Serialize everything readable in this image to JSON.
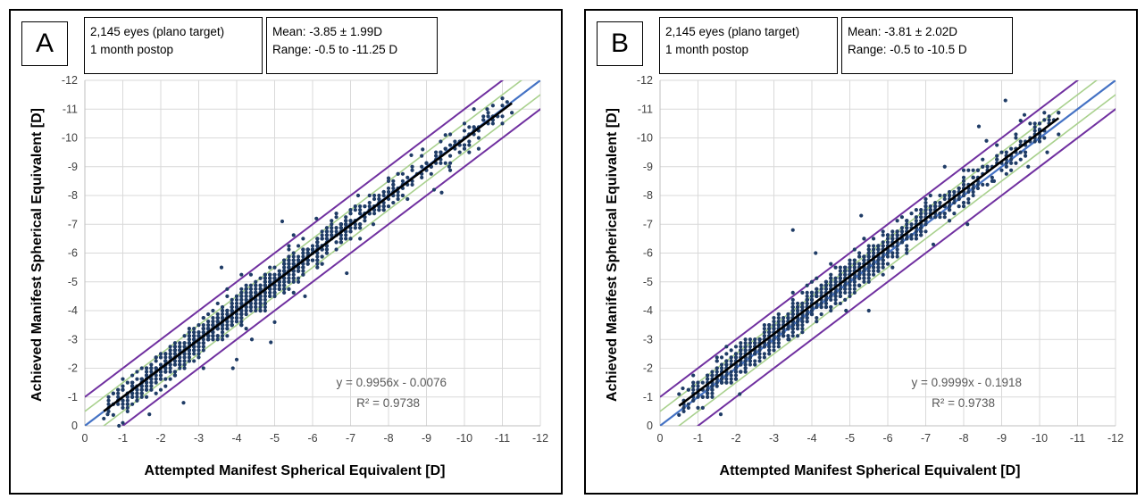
{
  "chart_data": [
    {
      "type": "scatter",
      "panel_label": "A",
      "info": {
        "line1": "2,145 eyes (plano target)",
        "line2": "1 month postop",
        "line3": "Mean: -3.85 ± 1.99D",
        "line4": "Range: -0.5 to -11.25 D"
      },
      "xlabel": "Attempted Manifest Spherical Equivalent [D]",
      "ylabel": "Achieved Manifest Spherical Equivalent [D]",
      "xlim": [
        0,
        -12
      ],
      "ylim": [
        0,
        -12
      ],
      "x_ticks": [
        "0",
        "-1",
        "-2",
        "-3",
        "-4",
        "-5",
        "-6",
        "-7",
        "-8",
        "-9",
        "-10",
        "-11",
        "-12"
      ],
      "y_ticks": [
        "0",
        "-1",
        "-2",
        "-3",
        "-4",
        "-5",
        "-6",
        "-7",
        "-8",
        "-9",
        "-10",
        "-11",
        "-12"
      ],
      "trendline": {
        "slope": 0.9956,
        "intercept": -0.0076,
        "x_range": [
          -0.5,
          -11.25
        ]
      },
      "equation": "y = 0.9956x - 0.0076",
      "r_squared": "R² = 0.9738",
      "points_outliers": [
        [
          -3.6,
          -5.5
        ],
        [
          -5.2,
          -7.1
        ],
        [
          -6.1,
          -7.2
        ],
        [
          -7.2,
          -8.0
        ],
        [
          -8.0,
          -8.6
        ],
        [
          -8.6,
          -9.4
        ],
        [
          -9.5,
          -10.1
        ],
        [
          -10.0,
          -10.5
        ],
        [
          -10.3,
          -10.3
        ],
        [
          -10.6,
          -11.0
        ],
        [
          -9.2,
          -8.2
        ],
        [
          -9.4,
          -8.1
        ],
        [
          -6.9,
          -5.3
        ],
        [
          -5.8,
          -4.5
        ],
        [
          -4.9,
          -2.9
        ],
        [
          -4.4,
          -3.0
        ],
        [
          -3.9,
          -2.0
        ],
        [
          -4.0,
          -2.3
        ],
        [
          -2.6,
          -0.8
        ],
        [
          -1.7,
          -0.4
        ],
        [
          -0.9,
          0.0
        ],
        [
          -1.0,
          -0.1
        ],
        [
          -0.6,
          -0.4
        ],
        [
          -5.0,
          -3.6
        ],
        [
          -8.9,
          -9.6
        ],
        [
          -9.6,
          -9.0
        ],
        [
          -7.6,
          -7.0
        ]
      ],
      "scatter_spread": 0.55
    },
    {
      "type": "scatter",
      "panel_label": "B",
      "info": {
        "line1": "2,145 eyes (plano target)",
        "line2": "1 month postop",
        "line3": "Mean: -3.81 ± 2.02D",
        "line4": "Range: -0.5 to -10.5 D"
      },
      "xlabel": "Attempted Manifest Spherical Equivalent [D]",
      "ylabel": "Achieved Manifest Spherical Equivalent [D]",
      "xlim": [
        0,
        -12
      ],
      "ylim": [
        0,
        -12
      ],
      "x_ticks": [
        "0",
        "-1",
        "-2",
        "-3",
        "-4",
        "-5",
        "-6",
        "-7",
        "-8",
        "-9",
        "-10",
        "-11",
        "-12"
      ],
      "y_ticks": [
        "0",
        "-1",
        "-2",
        "-3",
        "-4",
        "-5",
        "-6",
        "-7",
        "-8",
        "-9",
        "-10",
        "-11",
        "-12"
      ],
      "trendline": {
        "slope": 0.9999,
        "intercept": -0.1918,
        "x_range": [
          -0.5,
          -10.5
        ]
      },
      "equation": "y = 0.9999x - 0.1918",
      "r_squared": "R² = 0.9738",
      "points_outliers": [
        [
          -3.5,
          -6.8
        ],
        [
          -4.1,
          -6.0
        ],
        [
          -5.3,
          -7.3
        ],
        [
          -7.5,
          -9.0
        ],
        [
          -8.4,
          -10.4
        ],
        [
          -9.1,
          -11.3
        ],
        [
          -9.5,
          -10.6
        ],
        [
          -9.6,
          -10.8
        ],
        [
          -10.0,
          -10.3
        ],
        [
          -10.2,
          -9.5
        ],
        [
          -9.7,
          -9.0
        ],
        [
          -8.1,
          -7.0
        ],
        [
          -7.2,
          -6.3
        ],
        [
          -5.5,
          -4.0
        ],
        [
          -4.9,
          -4.0
        ],
        [
          -3.4,
          -3.0
        ],
        [
          -2.1,
          -1.1
        ],
        [
          -1.6,
          -0.4
        ],
        [
          -0.5,
          -1.1
        ],
        [
          -0.6,
          -1.3
        ],
        [
          -8.8,
          -8.5
        ],
        [
          -8.6,
          -9.9
        ]
      ],
      "scatter_spread": 0.55
    }
  ],
  "colors": {
    "points": "#1f3c66",
    "trend": "#000000",
    "identity": "#4472c4",
    "band_half": "#a9d18e",
    "band_one": "#7030a0",
    "grid": "#d9d9d9"
  }
}
